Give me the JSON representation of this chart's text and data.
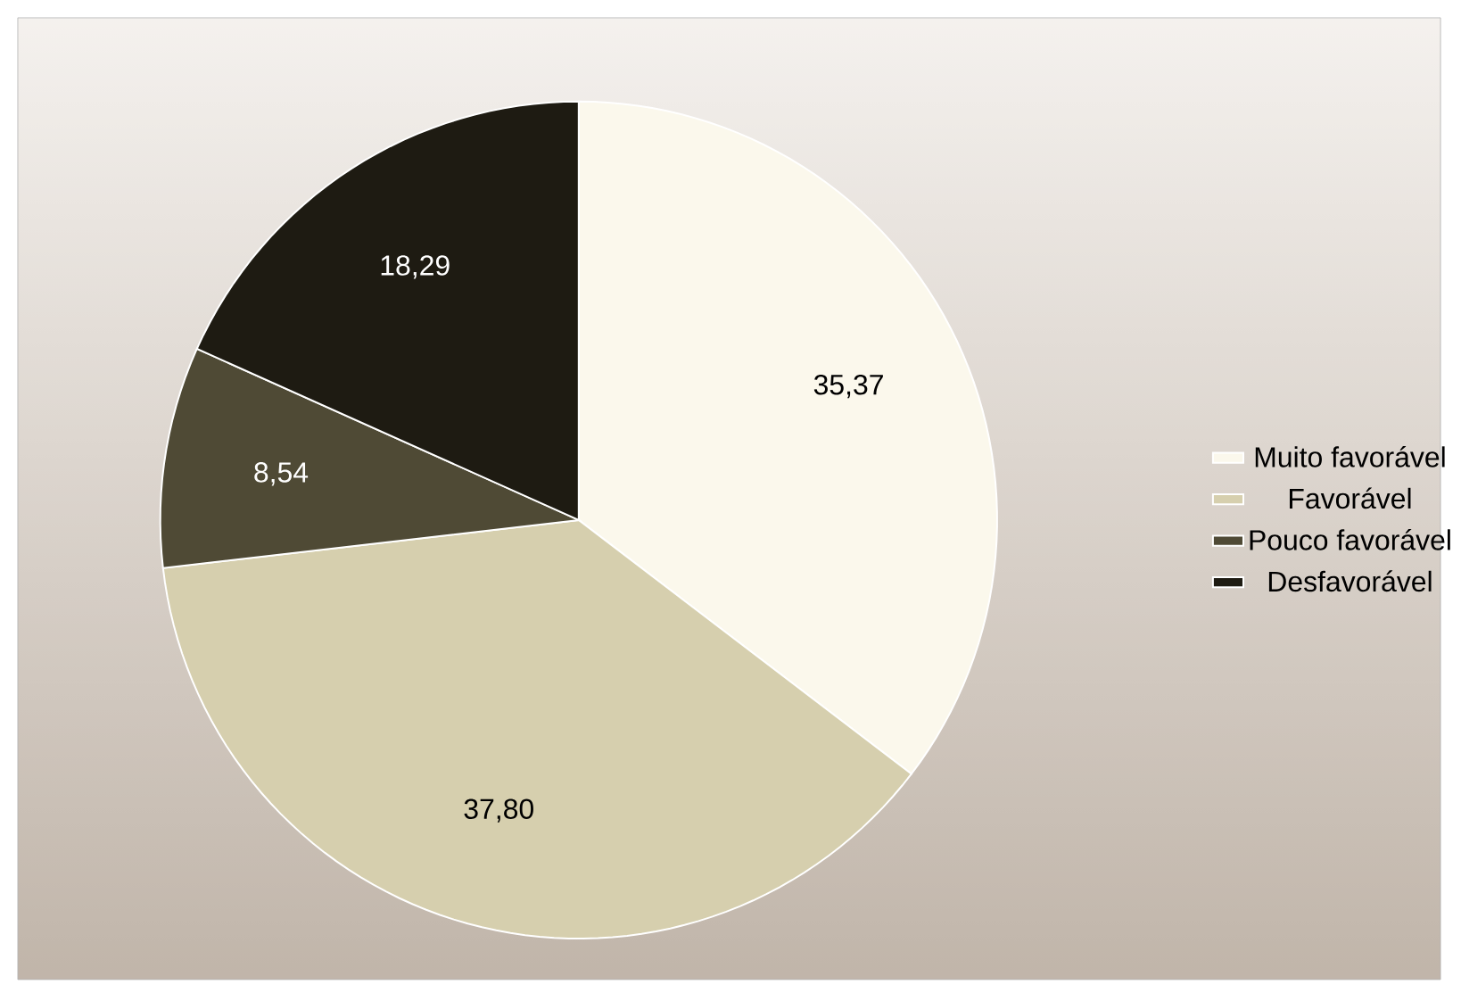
{
  "chart_data": {
    "type": "pie",
    "categories": [
      "Muito favorável",
      "Favorável",
      "Pouco favorável",
      "Desfavorável"
    ],
    "values": [
      35.37,
      37.8,
      8.54,
      18.29
    ],
    "value_labels": [
      "35,37",
      "37,80",
      "8,54",
      "18,29"
    ],
    "colors": [
      "#fbf8ec",
      "#d6cfae",
      "#4f4a35",
      "#1e1b12"
    ],
    "legend": "right"
  }
}
